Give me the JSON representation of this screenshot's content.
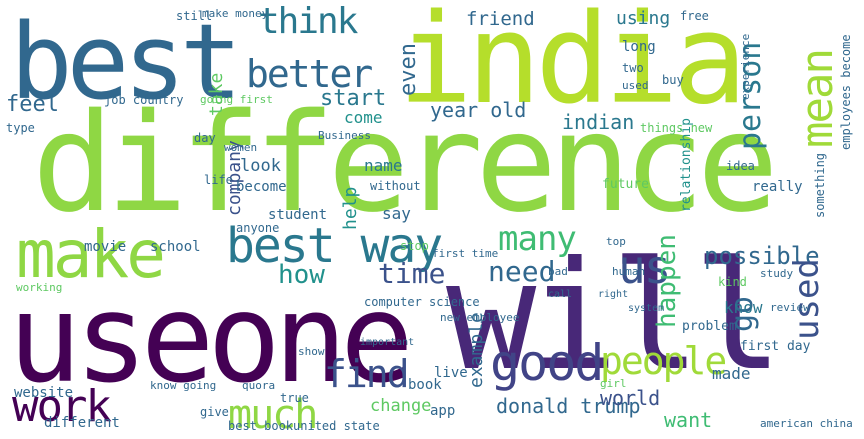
{
  "colors": {
    "lime": "#8fd744",
    "lightgreen": "#b5de2b",
    "green": "#3fbc73",
    "teal": "#2a788e",
    "tealdark": "#31688e",
    "slate": "#3b528b",
    "indigo": "#414487",
    "purple": "#440154",
    "seagreen": "#21918c"
  },
  "words": {
    "india": "india",
    "difference": "difference",
    "useone": "useone",
    "will": "will",
    "best": "best",
    "make": "make",
    "best_way": "best way",
    "good": "good",
    "people": "people",
    "work": "work",
    "much": "much",
    "find": "find",
    "think": "think",
    "better": "better",
    "mean": "mean",
    "us": "us",
    "many": "many",
    "possible": "possible",
    "person": "person",
    "used": "used",
    "go": "go",
    "happen": "happen",
    "need": "need",
    "time": "time",
    "how": "how",
    "feel": "feel",
    "start": "start",
    "year_old": "year old",
    "indian": "indian",
    "friend": "friend",
    "using": "using",
    "even": "even",
    "donald_trump": "donald trump",
    "world": "world",
    "want": "want",
    "change": "change",
    "made": "made",
    "know": "know",
    "look": "look",
    "name": "name",
    "say": "say",
    "come": "come",
    "help": "help",
    "company": "company",
    "student": "student",
    "school": "school",
    "movie": "movie",
    "example": "example",
    "book": "book",
    "app": "app",
    "live": "live",
    "problem": "problem",
    "first_day": "first day",
    "website": "website",
    "quora": "quora",
    "know_going": "know going",
    "different": "different",
    "give": "give",
    "true": "true",
    "best_bookunited_state": "best bookunited state",
    "take": "take",
    "computer_science": "computer science",
    "new_employee": "new employee",
    "job_country": "job country",
    "going_first": "going first",
    "still": "still",
    "make_money": "make money",
    "free": "free",
    "long": "long",
    "two": "two",
    "buy": "buy",
    "used_small": "used",
    "experience": "experience",
    "relationship": "relationship",
    "things_new": "things new",
    "future": "future",
    "idea": "idea",
    "really": "really",
    "something": "something",
    "employees_become": "employees become",
    "life": "life",
    "become": "become",
    "anyone": "anyone",
    "without": "without",
    "first_time": "first time",
    "stop": "stop",
    "top": "top",
    "human": "human",
    "study": "study",
    "review": "review",
    "girl": "girl",
    "day": "day",
    "women": "women",
    "business": "Business",
    "type": "type",
    "american_china": "american china",
    "important": "important",
    "show": "show",
    "bad": "bad",
    "kind": "kind",
    "working": "working",
    "system": "system",
    "right": "right",
    "call": "call"
  }
}
